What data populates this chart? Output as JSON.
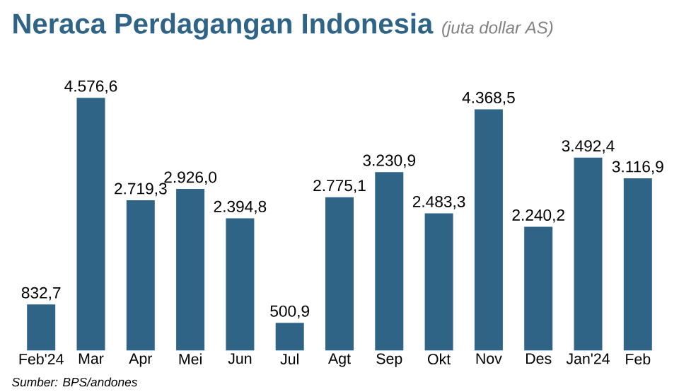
{
  "chart_data": {
    "type": "bar",
    "title": "Neraca Perdagangan Indonesia",
    "subtitle": "(juta dollar AS)",
    "categories": [
      "Feb'24",
      "Mar",
      "Apr",
      "Mei",
      "Jun",
      "Jul",
      "Agt",
      "Sep",
      "Okt",
      "Nov",
      "Des",
      "Jan'24",
      "Feb"
    ],
    "values": [
      832.7,
      4576.6,
      2719.3,
      2926.0,
      2394.8,
      500.9,
      2775.1,
      3230.9,
      2483.3,
      4368.5,
      2240.2,
      3492.4,
      3116.9
    ],
    "value_labels": [
      "832,7",
      "4.576,6",
      "2.719,3",
      "2.926,0",
      "2.394,8",
      "500,9",
      "2.775,1",
      "3.230,9",
      "2.483,3",
      "4.368,5",
      "2.240,2",
      "3.492,4",
      "3.116,9"
    ],
    "color": "#2f6487",
    "annotations": [
      "Sumber: BPS/andones"
    ]
  }
}
